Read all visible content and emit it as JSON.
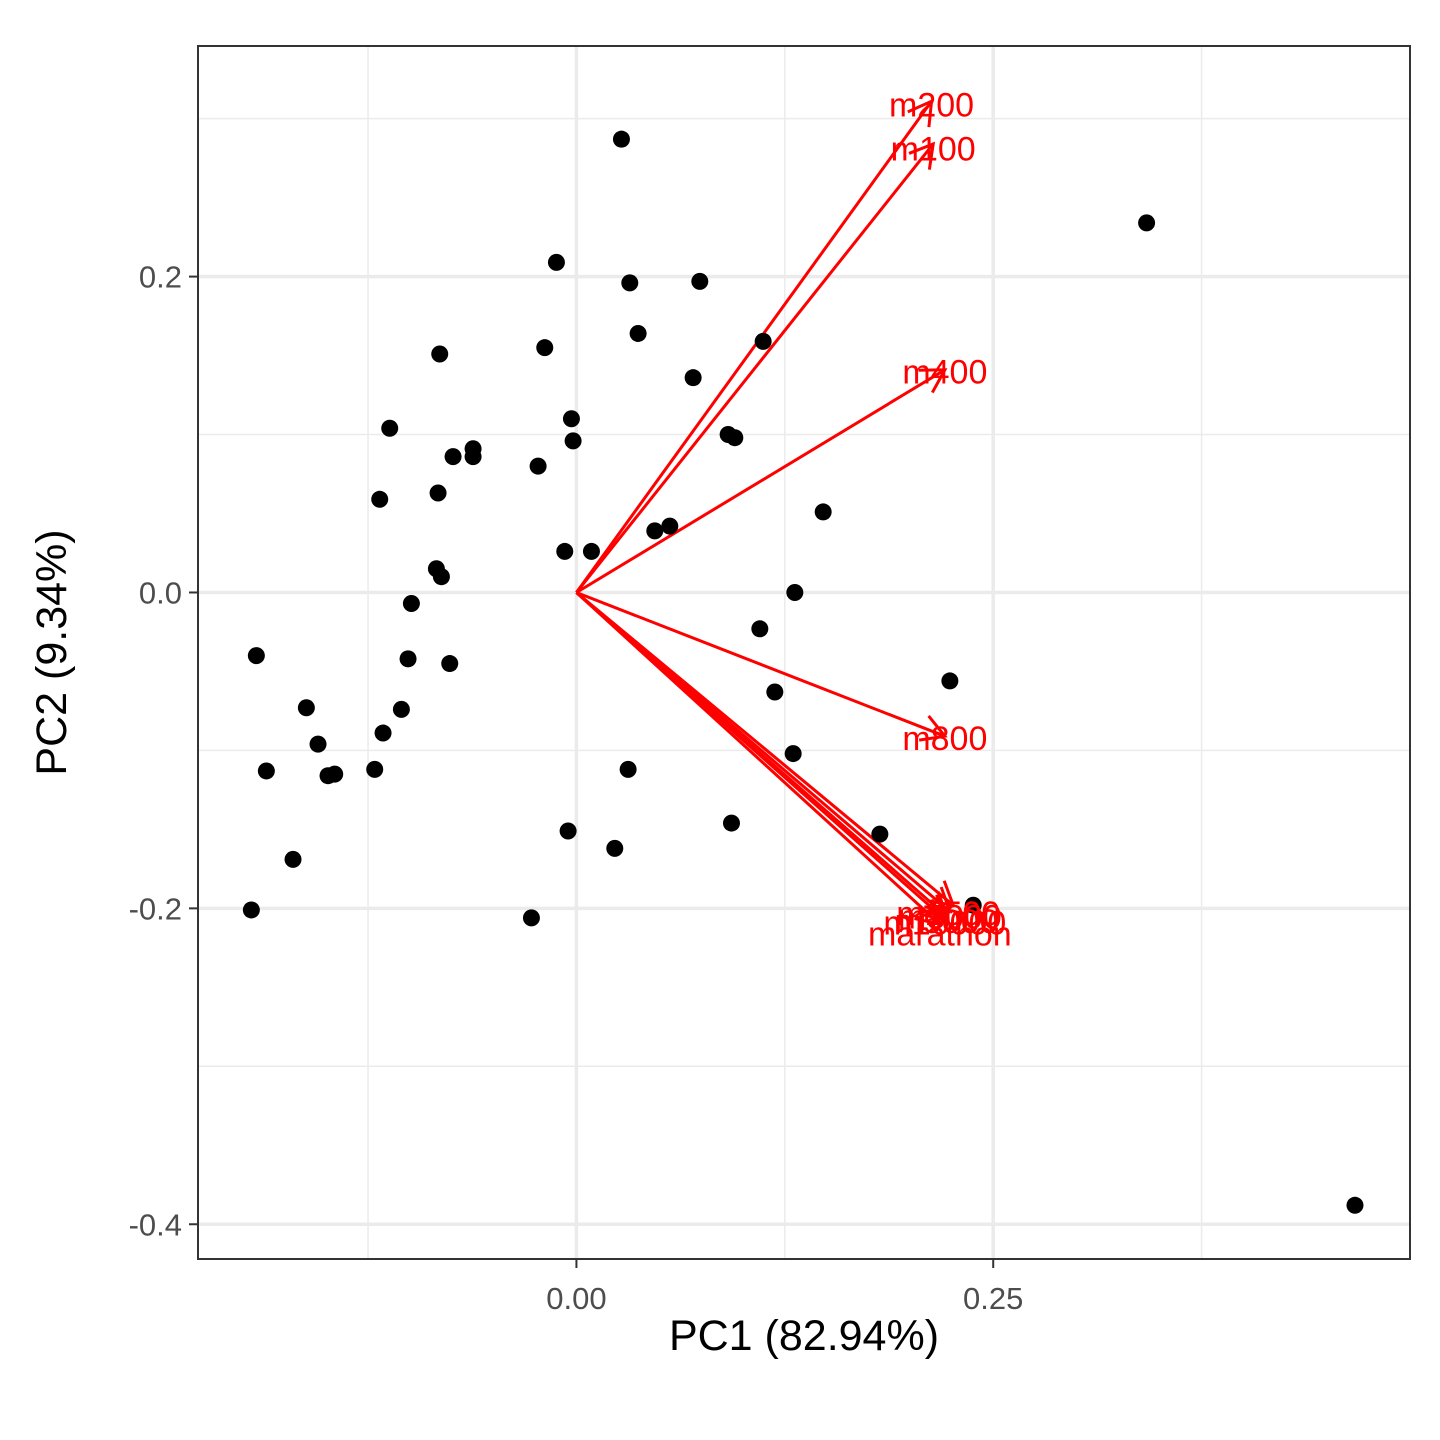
{
  "chart_data": {
    "type": "scatter",
    "title": "",
    "xlabel": "PC1 (82.94%)",
    "ylabel": "PC2 (9.34%)",
    "xlim": [
      -0.227,
      0.5
    ],
    "ylim": [
      -0.422,
      0.346
    ],
    "x_ticks": [
      0.0,
      0.25
    ],
    "x_tick_labels": [
      "0.00",
      "0.25"
    ],
    "x_minor_ticks": [
      -0.125,
      0.125,
      0.375
    ],
    "y_ticks": [
      -0.4,
      -0.2,
      0.0,
      0.2
    ],
    "y_tick_labels": [
      "-0.4",
      "-0.2",
      "0.0",
      "0.2"
    ],
    "y_minor_ticks": [
      -0.3,
      -0.1,
      0.1,
      0.3
    ],
    "grid": true,
    "colors": {
      "points": "#000000",
      "loadings": "#ff0000",
      "grid": "#ebebeb",
      "panel_border": "#333333",
      "tick_text": "#4d4d4d"
    },
    "series": [
      {
        "values": [
          [
            0.027,
            0.287
          ],
          [
            0.342,
            0.234
          ],
          [
            -0.012,
            0.209
          ],
          [
            0.032,
            0.196
          ],
          [
            0.074,
            0.197
          ],
          [
            0.037,
            0.164
          ],
          [
            0.112,
            0.159
          ],
          [
            -0.019,
            0.155
          ],
          [
            -0.082,
            0.151
          ],
          [
            0.07,
            0.136
          ],
          [
            -0.003,
            0.11
          ],
          [
            -0.112,
            0.104
          ],
          [
            -0.002,
            0.096
          ],
          [
            0.091,
            0.1
          ],
          [
            0.095,
            0.098
          ],
          [
            -0.062,
            0.091
          ],
          [
            -0.074,
            0.086
          ],
          [
            -0.062,
            0.086
          ],
          [
            -0.023,
            0.08
          ],
          [
            -0.083,
            0.063
          ],
          [
            -0.118,
            0.059
          ],
          [
            0.148,
            0.051
          ],
          [
            0.056,
            0.042
          ],
          [
            0.047,
            0.039
          ],
          [
            -0.007,
            0.026
          ],
          [
            0.009,
            0.026
          ],
          [
            -0.084,
            0.015
          ],
          [
            -0.081,
            0.01
          ],
          [
            0.131,
            0.0
          ],
          [
            -0.099,
            -0.007
          ],
          [
            0.11,
            -0.023
          ],
          [
            -0.192,
            -0.04
          ],
          [
            -0.101,
            -0.042
          ],
          [
            -0.076,
            -0.045
          ],
          [
            0.224,
            -0.056
          ],
          [
            0.119,
            -0.063
          ],
          [
            -0.162,
            -0.073
          ],
          [
            -0.105,
            -0.074
          ],
          [
            -0.116,
            -0.089
          ],
          [
            -0.155,
            -0.096
          ],
          [
            0.13,
            -0.102
          ],
          [
            -0.121,
            -0.112
          ],
          [
            0.031,
            -0.112
          ],
          [
            -0.186,
            -0.113
          ],
          [
            -0.149,
            -0.116
          ],
          [
            -0.145,
            -0.115
          ],
          [
            0.093,
            -0.146
          ],
          [
            -0.005,
            -0.151
          ],
          [
            0.182,
            -0.153
          ],
          [
            0.023,
            -0.162
          ],
          [
            -0.17,
            -0.169
          ],
          [
            0.238,
            -0.198
          ],
          [
            -0.195,
            -0.201
          ],
          [
            -0.027,
            -0.206
          ],
          [
            0.467,
            -0.388
          ]
        ]
      }
    ],
    "loadings": [
      {
        "name": "m200",
        "x": 0.213,
        "y": 0.311
      },
      {
        "name": "m100",
        "x": 0.214,
        "y": 0.284
      },
      {
        "name": "m400",
        "x": 0.221,
        "y": 0.141
      },
      {
        "name": "m800",
        "x": 0.221,
        "y": -0.091
      },
      {
        "name": "m1500",
        "x": 0.226,
        "y": -0.198
      },
      {
        "name": "m3000",
        "x": 0.224,
        "y": -0.202
      },
      {
        "name": "m5000",
        "x": 0.222,
        "y": -0.205
      },
      {
        "name": "m10000",
        "x": 0.221,
        "y": -0.207
      },
      {
        "name": "marathon",
        "x": 0.218,
        "y": -0.21
      }
    ],
    "loading_labels": [
      {
        "text": "m200",
        "x": 0.213,
        "y": 0.309
      },
      {
        "text": "m100",
        "x": 0.214,
        "y": 0.281
      },
      {
        "text": "m400",
        "x": 0.221,
        "y": 0.14
      },
      {
        "text": "m800",
        "x": 0.221,
        "y": -0.092
      },
      {
        "text": "m1500",
        "x": 0.223,
        "y": -0.203
      },
      {
        "text": "m3000",
        "x": 0.224,
        "y": -0.205
      },
      {
        "text": "m5000",
        "x": 0.222,
        "y": -0.208
      },
      {
        "text": "m10000",
        "x": 0.221,
        "y": -0.209
      },
      {
        "text": "marathon",
        "x": 0.218,
        "y": -0.216
      }
    ]
  }
}
